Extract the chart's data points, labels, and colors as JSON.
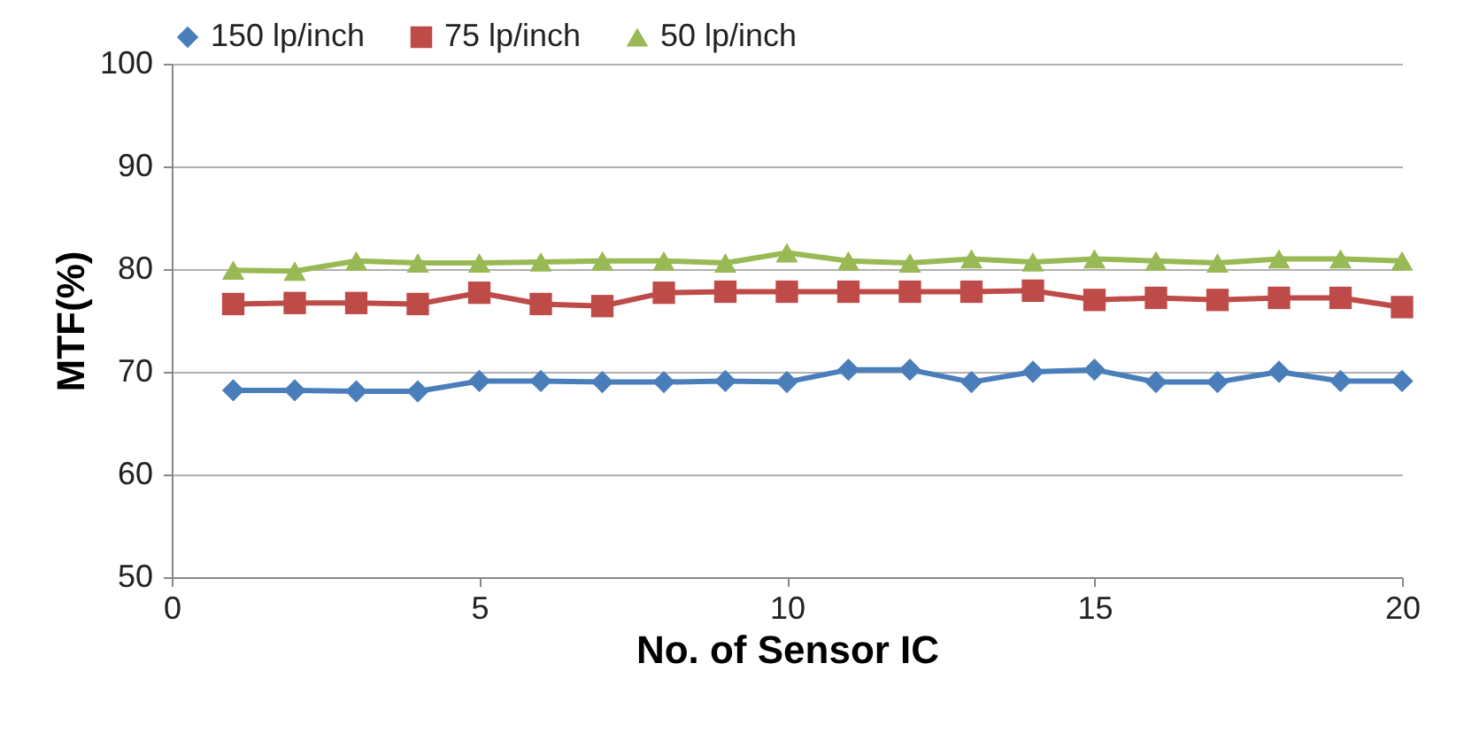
{
  "chart_data": {
    "type": "line",
    "xlabel": "No. of Sensor IC",
    "ylabel": "MTF(%)",
    "x": [
      1,
      2,
      3,
      4,
      5,
      6,
      7,
      8,
      9,
      10,
      11,
      12,
      13,
      14,
      15,
      16,
      17,
      18,
      19,
      20
    ],
    "series": [
      {
        "name": "150 lp/inch",
        "color": "#4a7ebb",
        "marker": "diamond",
        "values": [
          68.2,
          68.2,
          68.1,
          68.1,
          69.1,
          69.1,
          69,
          69,
          69.1,
          69,
          70.2,
          70.2,
          69,
          70,
          70.2,
          69,
          69,
          70,
          69.1,
          69.1
        ]
      },
      {
        "name": "75 lp/inch",
        "color": "#be4b48",
        "marker": "square",
        "values": [
          76.6,
          76.7,
          76.7,
          76.6,
          77.7,
          76.6,
          76.4,
          77.7,
          77.8,
          77.8,
          77.8,
          77.8,
          77.8,
          77.9,
          77,
          77.2,
          77,
          77.2,
          77.2,
          76.3
        ]
      },
      {
        "name": "50 lp/inch",
        "color": "#98b954",
        "marker": "triangle",
        "values": [
          79.9,
          79.8,
          80.8,
          80.6,
          80.6,
          80.7,
          80.8,
          80.8,
          80.6,
          81.6,
          80.8,
          80.6,
          81,
          80.7,
          81,
          80.8,
          80.6,
          81,
          81,
          80.8
        ]
      }
    ],
    "xlim": [
      0,
      20
    ],
    "xticks": [
      0,
      5,
      10,
      15,
      20
    ],
    "ylim": [
      50,
      100
    ],
    "yticks": [
      50,
      60,
      70,
      80,
      90,
      100
    ],
    "grid": "y",
    "legend": "top",
    "line_style": "solid"
  }
}
